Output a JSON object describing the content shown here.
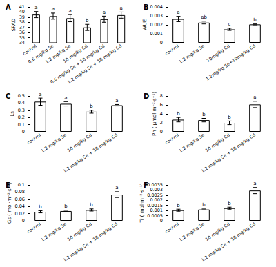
{
  "chart_data": [
    {
      "type": "bar",
      "title": "A",
      "y_label": "SPAD",
      "categories": [
        "control",
        "0.6 mg/kg Se",
        "1.2 mg/kg Se",
        "10 mg/kg Cd",
        "0.6 mg/kg Se + 10 mg/kg Cd",
        "1.2 mg/kg Se + 10 mg/kg Cd"
      ],
      "values": [
        39.5,
        39.2,
        38.8,
        37.0,
        38.6,
        39.4
      ],
      "errors": [
        0.6,
        0.6,
        0.7,
        0.6,
        0.6,
        0.6
      ],
      "annotations": [
        "a",
        "a",
        "a",
        "b",
        "a",
        "a"
      ],
      "color": "#ffffff",
      "ylim": [
        34,
        41
      ],
      "yticks": [
        34,
        35,
        36,
        37,
        38,
        39,
        40,
        41
      ],
      "grid": false
    },
    {
      "type": "bar",
      "title": "B",
      "y_label": "WUE",
      "categories": [
        "control",
        "1.2 mg/kg Se",
        "10mg/kg Cd",
        "1.2mg/kg Se+10mg/kg Cd"
      ],
      "values": [
        0.00265,
        0.00225,
        0.0015,
        0.00205
      ],
      "errors": [
        0.0003,
        0.00015,
        0.00012,
        5e-05
      ],
      "annotations": [
        "a",
        "ab",
        "c",
        "b"
      ],
      "color": "#ffffff",
      "ylim": [
        0,
        0.004
      ],
      "yticks": [
        0,
        0.001,
        0.002,
        0.003,
        0.004
      ],
      "grid": false
    },
    {
      "type": "bar",
      "title": "C",
      "y_label": "Ls",
      "categories": [
        "control",
        "1.2 mg/kg Se",
        "10 mg/kg Cd",
        "1.2 mg/kg Se + 10 mg/kg Cd"
      ],
      "values": [
        0.42,
        0.39,
        0.28,
        0.37
      ],
      "errors": [
        0.05,
        0.03,
        0.02,
        0.01
      ],
      "annotations": [
        "a",
        "a",
        "b",
        "a"
      ],
      "color": "#ffffff",
      "ylim": [
        0,
        0.5
      ],
      "yticks": [
        0,
        0.1,
        0.2,
        0.3,
        0.4,
        0.5
      ],
      "grid": false
    },
    {
      "type": "bar",
      "title": "D",
      "y_label": "Pn ( μmol·m⁻²·s⁻¹)",
      "categories": [
        "control",
        "1.2 mg/kg Se",
        "10 mg/kg Cd",
        "1.2 mg/kg Se + 10 mg/kg Cd"
      ],
      "values": [
        2.7,
        2.6,
        2.0,
        6.1
      ],
      "errors": [
        0.5,
        0.4,
        0.4,
        0.7
      ],
      "annotations": [
        "b",
        "b",
        "b",
        "a"
      ],
      "color": "#ffffff",
      "ylim": [
        0,
        8
      ],
      "yticks": [
        0,
        2,
        4,
        6,
        8
      ],
      "grid": false
    },
    {
      "type": "bar",
      "title": "E",
      "y_label": "Gs ( mol·m⁻²·s⁻¹)",
      "categories": [
        "control",
        "1.2 mg/kg Se",
        "10 mg/kg Cd",
        "1.2 mg/kg Se + 10 mg/kg Cd"
      ],
      "values": [
        0.025,
        0.027,
        0.03,
        0.073
      ],
      "errors": [
        0.003,
        0.002,
        0.003,
        0.008
      ],
      "annotations": [
        "b",
        "b",
        "b",
        "a"
      ],
      "color": "#ffffff",
      "ylim": [
        0,
        0.1
      ],
      "yticks": [
        0,
        0.02,
        0.04,
        0.06,
        0.08,
        0.1
      ],
      "grid": false
    },
    {
      "type": "bar",
      "title": "F",
      "y_label": "Tr ( mol·m⁻²·s⁻¹)",
      "categories": [
        "control",
        "1.2 mg/kg Se",
        "10 mg/kg Cd",
        "1.2 mg/kg Se + 10 mg/kg Cd"
      ],
      "values": [
        0.00103,
        0.0011,
        0.00123,
        0.00295
      ],
      "errors": [
        0.0001,
        5e-05,
        0.0001,
        0.0003
      ],
      "annotations": [
        "b",
        "b",
        "b",
        "a"
      ],
      "color": "#ffffff",
      "ylim": [
        0,
        0.0035
      ],
      "yticks": [
        0,
        0.0005,
        0.001,
        0.0015,
        0.002,
        0.0025,
        0.003,
        0.0035
      ],
      "grid": false
    }
  ]
}
